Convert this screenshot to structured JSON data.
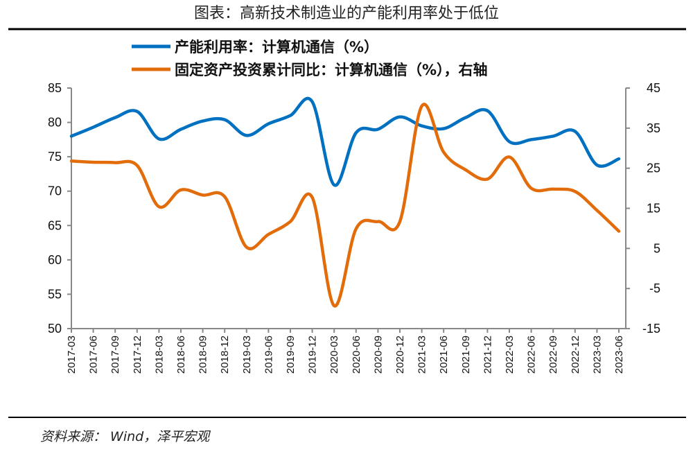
{
  "title": "图表：高新技术制造业的产能利用率处于低位",
  "source": "资料来源： Wind，泽平宏观",
  "chart_data": {
    "type": "line",
    "title": "图表：高新技术制造业的产能利用率处于低位",
    "categories": [
      "2017-03",
      "2017-06",
      "2017-09",
      "2017-12",
      "2018-03",
      "2018-06",
      "2018-09",
      "2018-12",
      "2019-03",
      "2019-06",
      "2019-09",
      "2019-12",
      "2020-03",
      "2020-06",
      "2020-09",
      "2020-12",
      "2021-03",
      "2021-06",
      "2021-09",
      "2021-12",
      "2022-03",
      "2022-06",
      "2022-09",
      "2022-12",
      "2023-03",
      "2023-06"
    ],
    "y_left": {
      "range": [
        50,
        85
      ],
      "ticks": [
        "85",
        "80",
        "75",
        "70",
        "65",
        "60",
        "55",
        "50"
      ]
    },
    "y_right": {
      "range": [
        -15,
        45
      ],
      "ticks": [
        "45",
        "35",
        "25",
        "15",
        "5",
        "-5",
        "-15"
      ]
    },
    "grid": false,
    "legend": "top",
    "series": [
      {
        "name": "产能利用率：计算机通信（%）",
        "axis": "left",
        "color": "#0070C0",
        "values": [
          78.0,
          79.3,
          80.7,
          81.6,
          77.6,
          79.0,
          80.2,
          80.4,
          78.1,
          79.8,
          81.0,
          83.0,
          70.9,
          78.5,
          79.0,
          80.8,
          79.5,
          79.1,
          80.7,
          81.7,
          77.2,
          77.5,
          78.0,
          78.7,
          73.8,
          74.7
        ]
      },
      {
        "name": "固定资产投资累计同比：计算机通信（%），右轴",
        "axis": "right",
        "color": "#E36C0A",
        "values": [
          26.8,
          26.5,
          26.4,
          25.7,
          15.4,
          19.6,
          18.3,
          17.9,
          5.3,
          8.5,
          11.7,
          17.7,
          -9.3,
          9.9,
          11.7,
          11.7,
          40.5,
          29.0,
          24.6,
          22.3,
          27.8,
          20.0,
          19.8,
          19.2,
          14.5,
          9.3
        ]
      }
    ]
  }
}
